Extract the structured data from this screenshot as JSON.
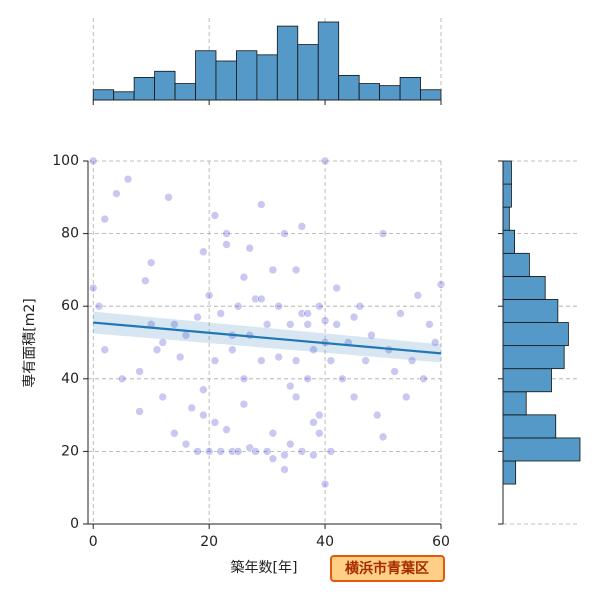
{
  "chart_data": {
    "type": "jointplot",
    "x_label": "築年数[年]",
    "y_label": "専有面積[m2]",
    "annotation": "横浜市青葉区",
    "xlim": [
      -0.9,
      60
    ],
    "ylim": [
      0,
      100
    ],
    "xticks": [
      0,
      20,
      40,
      60
    ],
    "yticks": [
      0,
      20,
      40,
      60,
      80,
      100
    ],
    "grid": true,
    "scatter": {
      "color": "#3a3acc",
      "x": [
        0,
        0,
        1,
        2,
        4,
        6,
        8,
        9,
        10,
        11,
        12,
        13,
        14,
        15,
        16,
        17,
        18,
        18,
        19,
        19,
        20,
        20,
        21,
        21,
        22,
        22,
        23,
        23,
        24,
        24,
        25,
        25,
        26,
        26,
        27,
        27,
        28,
        28,
        29,
        29,
        30,
        30,
        31,
        31,
        32,
        32,
        33,
        33,
        34,
        34,
        35,
        35,
        36,
        36,
        37,
        37,
        38,
        38,
        39,
        39,
        40,
        40,
        40,
        41,
        41,
        42,
        42,
        43,
        44,
        45,
        46,
        47,
        48,
        49,
        50,
        51,
        52,
        53,
        54,
        55,
        56,
        57,
        58,
        59,
        60,
        10,
        14,
        19,
        21,
        23,
        26,
        29,
        31,
        34,
        36,
        38,
        40,
        12,
        16,
        24,
        33,
        37,
        39,
        45,
        50,
        2,
        5,
        8,
        27,
        35
      ],
      "y": [
        100,
        65,
        60,
        48,
        91,
        95,
        42,
        67,
        55,
        48,
        50,
        90,
        25,
        46,
        52,
        32,
        20,
        57,
        30,
        75,
        20,
        63,
        45,
        85,
        20,
        58,
        26,
        77,
        20,
        48,
        60,
        20,
        68,
        40,
        21,
        52,
        20,
        62,
        45,
        88,
        20,
        55,
        70,
        25,
        46,
        60,
        19,
        80,
        55,
        22,
        45,
        70,
        20,
        58,
        40,
        55,
        19,
        48,
        60,
        25,
        100,
        50,
        11,
        45,
        20,
        55,
        65,
        40,
        50,
        35,
        60,
        45,
        52,
        30,
        80,
        48,
        42,
        58,
        35,
        45,
        63,
        40,
        55,
        50,
        66,
        72,
        55,
        37,
        28,
        80,
        33,
        62,
        18,
        38,
        82,
        28,
        56,
        35,
        22,
        52,
        15,
        58,
        30,
        57,
        24,
        84,
        40,
        31,
        76,
        35
      ]
    },
    "regression": {
      "color": "#1f77b4",
      "x": [
        0,
        60
      ],
      "y": [
        55.5,
        47
      ],
      "ci_lower": [
        52.5,
        44.5
      ],
      "ci_upper": [
        58.5,
        49.5
      ]
    },
    "hist_x": {
      "color": "#5599c8",
      "bins": [
        0,
        3.53,
        7.06,
        10.59,
        14.12,
        17.65,
        21.18,
        24.71,
        28.24,
        31.76,
        35.29,
        38.82,
        42.35,
        45.88,
        49.41,
        52.94,
        56.47,
        60
      ],
      "counts": [
        5,
        4,
        11,
        14,
        8,
        24,
        19,
        24,
        22,
        36,
        27,
        38,
        12,
        8,
        7,
        11,
        5
      ]
    },
    "hist_y": {
      "color": "#5599c8",
      "bins": [
        11,
        17.36,
        23.71,
        30.07,
        36.43,
        42.79,
        49.14,
        55.5,
        61.86,
        68.21,
        74.57,
        80.93,
        87.29,
        93.64,
        100
      ],
      "counts": [
        12,
        73,
        50,
        22,
        46,
        58,
        62,
        52,
        40,
        25,
        11,
        6,
        8,
        8
      ]
    }
  }
}
